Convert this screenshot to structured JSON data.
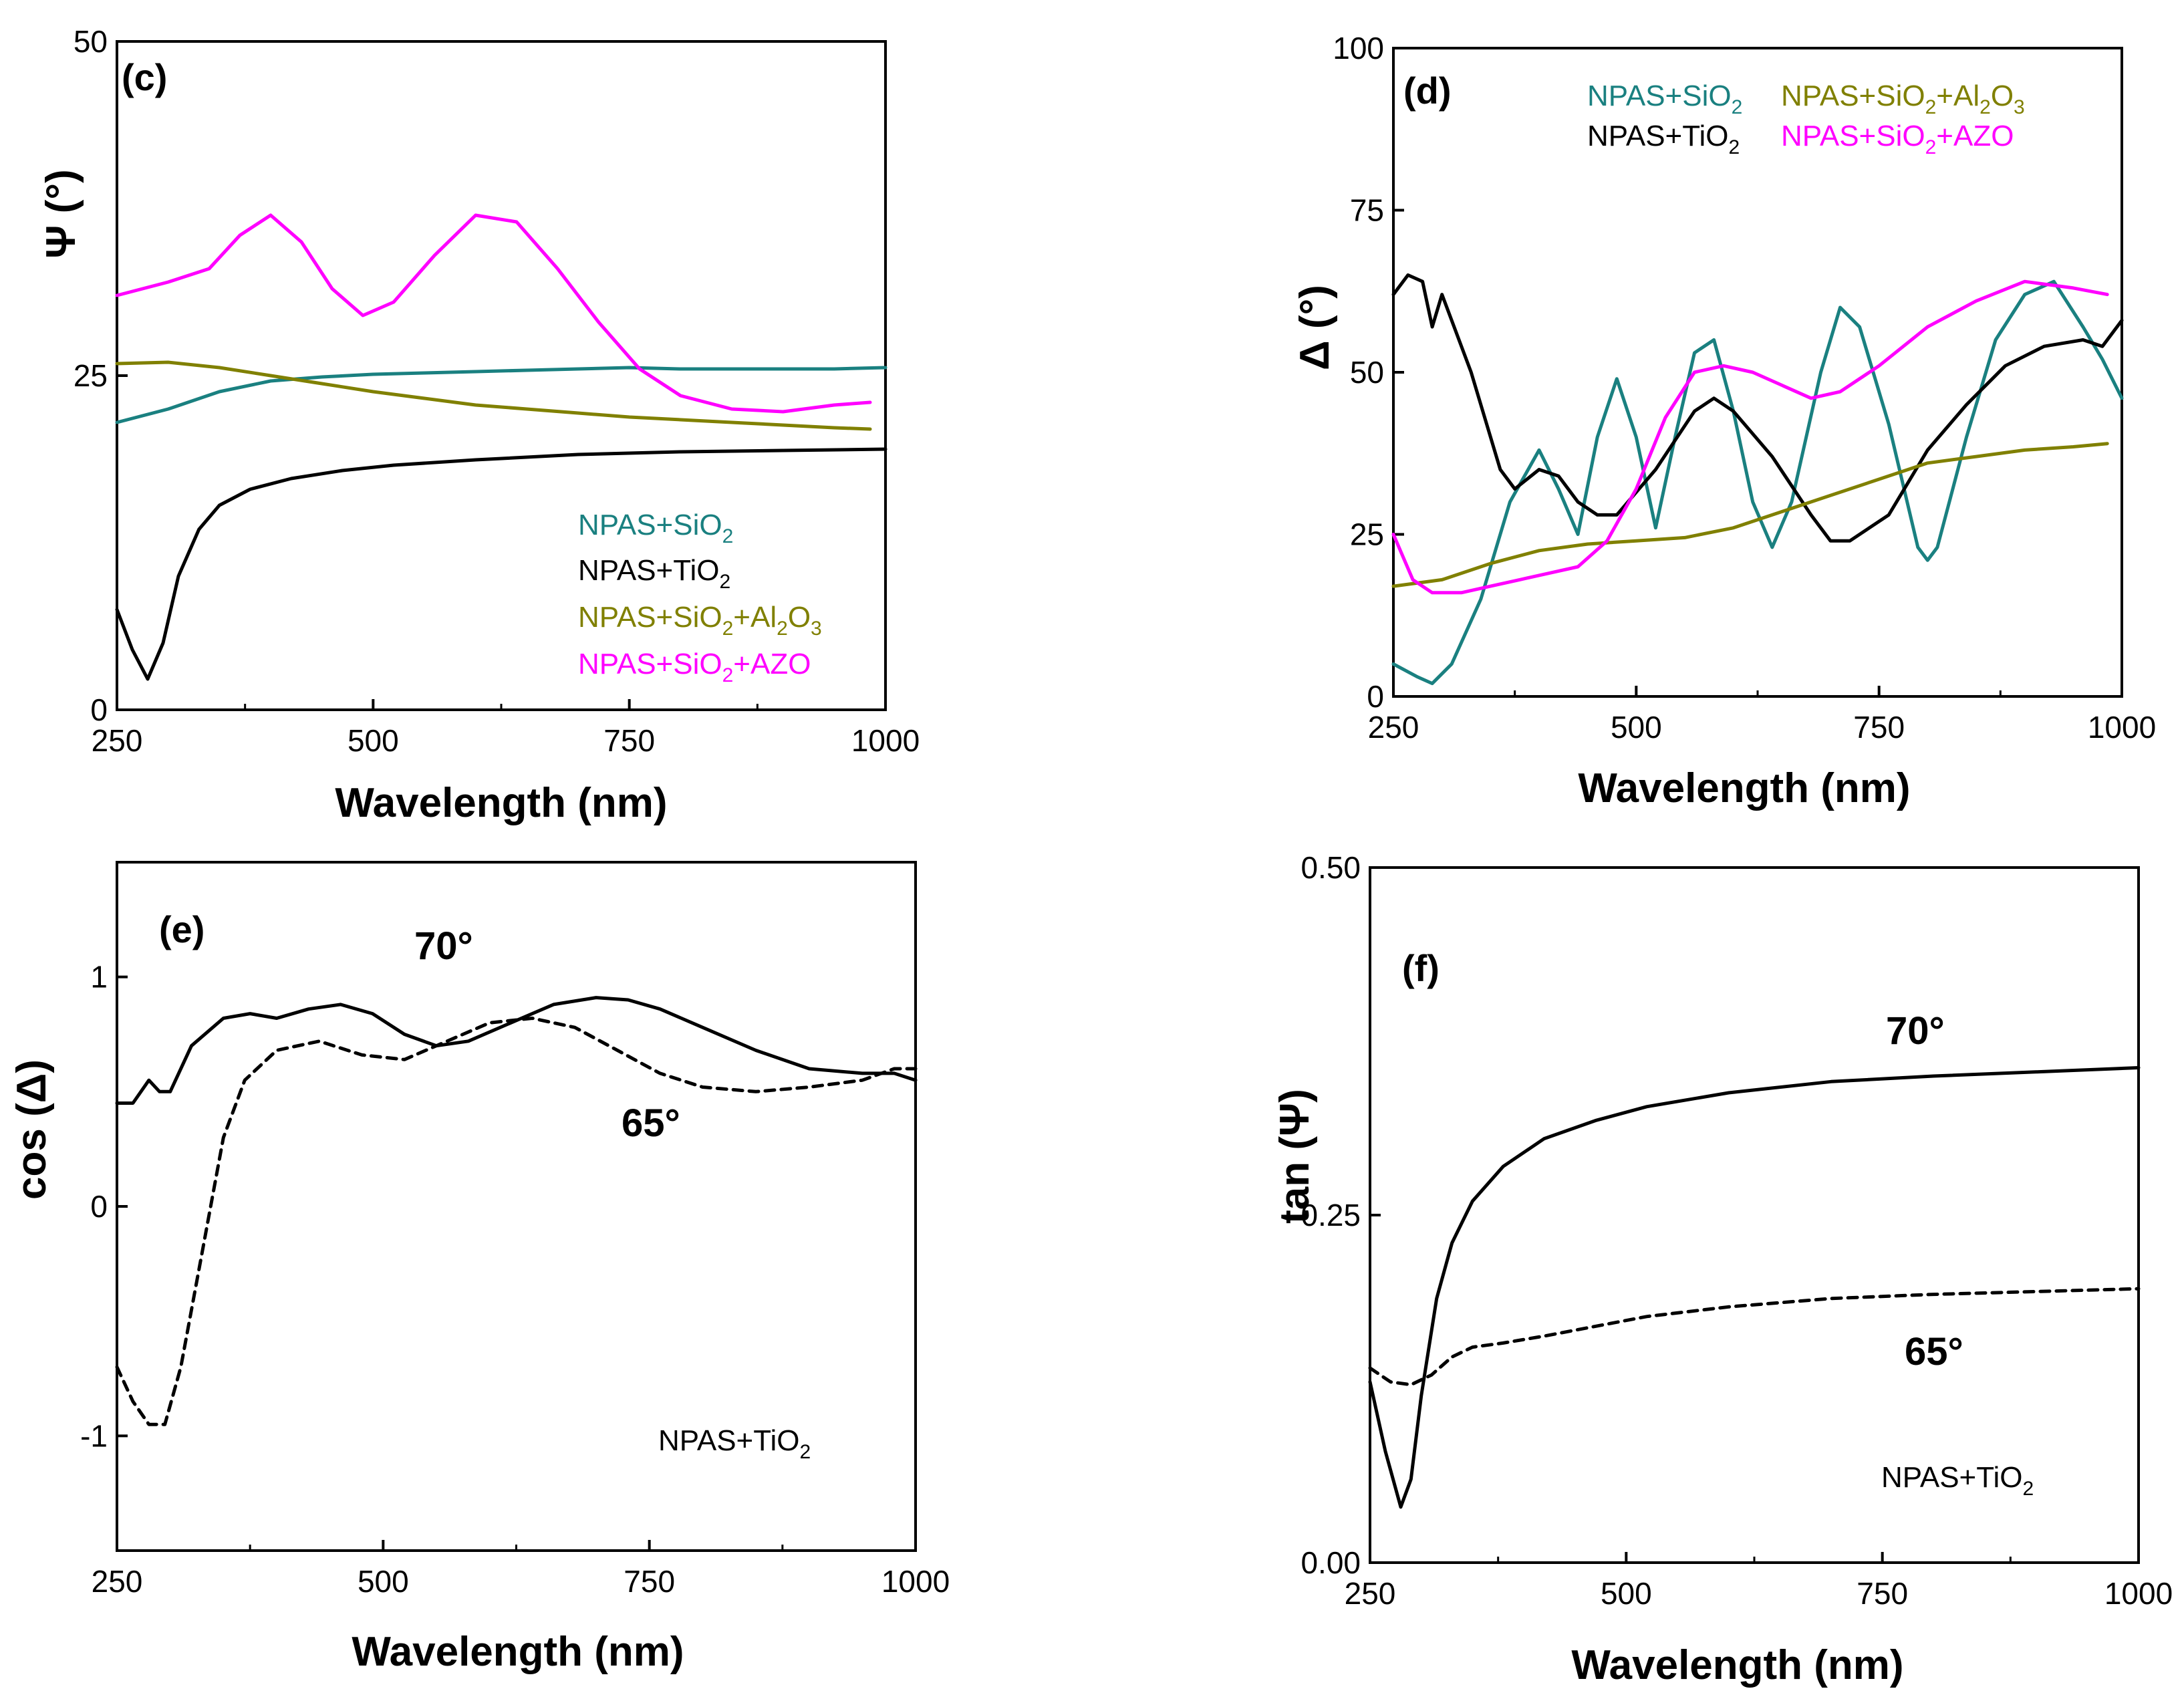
{
  "chart_data": [
    {
      "id": "c",
      "type": "line",
      "panel_label": "(c)",
      "xlabel": "Wavelength (nm)",
      "ylabel": "Ψ (°)",
      "xlim": [
        250,
        1000
      ],
      "ylim": [
        0,
        50
      ],
      "xticks": [
        250,
        500,
        750,
        1000
      ],
      "yticks": [
        0,
        25,
        50
      ],
      "legend_position": "bottom-right",
      "series": [
        {
          "name": "NPAS+SiO2",
          "label": "NPAS+SiO",
          "sub": "2",
          "label_after": "",
          "color": "#1a8080",
          "dash": "",
          "x": [
            250,
            300,
            350,
            400,
            450,
            500,
            550,
            600,
            650,
            700,
            750,
            800,
            850,
            900,
            950,
            1000
          ],
          "y": [
            21.5,
            22.5,
            23.8,
            24.6,
            24.9,
            25.1,
            25.2,
            25.3,
            25.4,
            25.5,
            25.6,
            25.5,
            25.5,
            25.5,
            25.5,
            25.6
          ]
        },
        {
          "name": "NPAS+TiO2",
          "label": "NPAS+TiO",
          "sub": "2",
          "label_after": "",
          "color": "#000000",
          "dash": "",
          "x": [
            250,
            265,
            280,
            295,
            310,
            330,
            350,
            380,
            420,
            470,
            520,
            600,
            700,
            800,
            900,
            1000
          ],
          "y": [
            7.5,
            4.5,
            2.3,
            5,
            10,
            13.5,
            15.3,
            16.5,
            17.3,
            17.9,
            18.3,
            18.7,
            19.1,
            19.3,
            19.4,
            19.5
          ]
        },
        {
          "name": "NPAS+SiO2+Al2O3",
          "label": "NPAS+SiO",
          "sub": "2",
          "label_after": "+Al",
          "sub2": "2",
          "label_after2": "O",
          "sub3": "3",
          "color": "#808000",
          "dash": "",
          "x": [
            250,
            300,
            350,
            400,
            450,
            500,
            550,
            600,
            650,
            700,
            750,
            800,
            850,
            900,
            950,
            985
          ],
          "y": [
            25.9,
            26,
            25.6,
            25,
            24.4,
            23.8,
            23.3,
            22.8,
            22.5,
            22.2,
            21.9,
            21.7,
            21.5,
            21.3,
            21.1,
            21.0
          ]
        },
        {
          "name": "NPAS+SiO2+AZO",
          "label": "NPAS+SiO",
          "sub": "2",
          "label_after": "+AZO",
          "color": "#ff00ff",
          "dash": "",
          "x": [
            250,
            300,
            340,
            370,
            400,
            430,
            460,
            490,
            520,
            560,
            600,
            640,
            680,
            720,
            760,
            800,
            850,
            900,
            950,
            985
          ],
          "y": [
            31,
            32,
            33,
            35.5,
            37,
            35,
            31.5,
            29.5,
            30.5,
            34,
            37,
            36.5,
            33,
            29,
            25.5,
            23.5,
            22.5,
            22.3,
            22.8,
            23.0
          ]
        }
      ]
    },
    {
      "id": "d",
      "type": "line",
      "panel_label": "(d)",
      "xlabel": "Wavelength (nm)",
      "ylabel": "Δ (°)",
      "xlim": [
        250,
        1000
      ],
      "ylim": [
        0,
        100
      ],
      "xticks": [
        250,
        500,
        750,
        1000
      ],
      "yticks": [
        0,
        25,
        50,
        75,
        100
      ],
      "legend_position": "top",
      "series": [
        {
          "name": "NPAS+SiO2",
          "label": "NPAS+SiO",
          "sub": "2",
          "label_after": "",
          "color": "#1a8080",
          "dash": "",
          "x": [
            250,
            275,
            290,
            310,
            340,
            370,
            400,
            420,
            440,
            460,
            480,
            500,
            520,
            540,
            560,
            580,
            600,
            620,
            640,
            660,
            690,
            710,
            730,
            760,
            790,
            800,
            810,
            840,
            870,
            900,
            930,
            960,
            980,
            1000
          ],
          "y": [
            5,
            3,
            2,
            5,
            15,
            30,
            38,
            32,
            25,
            40,
            49,
            40,
            26,
            40,
            53,
            55,
            44,
            30,
            23,
            30,
            50,
            60,
            57,
            42,
            23,
            21,
            23,
            40,
            55,
            62,
            64,
            57,
            52,
            46
          ]
        },
        {
          "name": "NPAS+TiO2",
          "label": "NPAS+TiO",
          "sub": "2",
          "label_after": "",
          "color": "#000000",
          "dash": "",
          "x": [
            250,
            265,
            280,
            290,
            300,
            330,
            360,
            375,
            400,
            420,
            440,
            460,
            480,
            520,
            560,
            580,
            600,
            640,
            680,
            700,
            720,
            760,
            800,
            840,
            880,
            920,
            960,
            980,
            1000
          ],
          "y": [
            62,
            65,
            64,
            57,
            62,
            50,
            35,
            32,
            35,
            34,
            30,
            28,
            28,
            35,
            44,
            46,
            44,
            37,
            28,
            24,
            24,
            28,
            38,
            45,
            51,
            54,
            55,
            54,
            58
          ]
        },
        {
          "name": "NPAS+SiO2+Al2O3",
          "label": "NPAS+SiO",
          "sub": "2",
          "label_after": "+Al",
          "sub2": "2",
          "label_after2": "O",
          "sub3": "3",
          "color": "#808000",
          "dash": "",
          "x": [
            250,
            300,
            350,
            400,
            450,
            500,
            550,
            600,
            650,
            700,
            750,
            800,
            850,
            900,
            950,
            985
          ],
          "y": [
            17,
            18,
            20.5,
            22.5,
            23.5,
            24,
            24.5,
            26,
            28.5,
            31,
            33.5,
            36,
            37,
            38,
            38.5,
            39
          ]
        },
        {
          "name": "NPAS+SiO2+AZO",
          "label": "NPAS+SiO",
          "sub": "2",
          "label_after": "+AZO",
          "color": "#ff00ff",
          "dash": "",
          "x": [
            250,
            270,
            290,
            320,
            350,
            380,
            410,
            440,
            470,
            500,
            530,
            560,
            590,
            620,
            650,
            680,
            710,
            750,
            800,
            850,
            900,
            950,
            985
          ],
          "y": [
            25,
            18,
            16,
            16,
            17,
            18,
            19,
            20,
            24,
            32,
            43,
            50,
            51,
            50,
            48,
            46,
            47,
            51,
            57,
            61,
            64,
            63,
            62
          ]
        }
      ]
    },
    {
      "id": "e",
      "type": "line",
      "panel_label": "(e)",
      "xlabel": "Wavelength (nm)",
      "ylabel": "cos (Δ)",
      "xlim": [
        250,
        1000
      ],
      "ylim": [
        -1.5,
        1.5
      ],
      "xticks": [
        250,
        500,
        750,
        1000
      ],
      "yticks": [
        -1,
        0,
        1
      ],
      "ytick_labels": [
        "-1",
        "0",
        "1"
      ],
      "legend_position": "bottom-right",
      "sample_label": "NPAS+TiO",
      "sample_sub": "2",
      "angle_labels": [
        "70°",
        "65°"
      ],
      "series": [
        {
          "name": "70°",
          "color": "#000000",
          "dash": "",
          "x": [
            250,
            265,
            280,
            290,
            300,
            320,
            350,
            375,
            400,
            430,
            460,
            490,
            520,
            550,
            580,
            620,
            660,
            700,
            730,
            760,
            800,
            850,
            900,
            950,
            980,
            1000
          ],
          "y": [
            0.45,
            0.45,
            0.55,
            0.5,
            0.5,
            0.7,
            0.82,
            0.84,
            0.82,
            0.86,
            0.88,
            0.84,
            0.75,
            0.7,
            0.72,
            0.8,
            0.88,
            0.91,
            0.9,
            0.86,
            0.78,
            0.68,
            0.6,
            0.58,
            0.58,
            0.55
          ]
        },
        {
          "name": "65°",
          "color": "#000000",
          "dash": "14,10",
          "x": [
            250,
            265,
            280,
            295,
            310,
            330,
            350,
            370,
            400,
            440,
            480,
            520,
            560,
            600,
            640,
            680,
            720,
            760,
            800,
            850,
            900,
            950,
            980,
            1000
          ],
          "y": [
            -0.7,
            -0.85,
            -0.95,
            -0.95,
            -0.7,
            -0.2,
            0.3,
            0.55,
            0.68,
            0.72,
            0.66,
            0.64,
            0.72,
            0.8,
            0.82,
            0.78,
            0.68,
            0.58,
            0.52,
            0.5,
            0.52,
            0.55,
            0.6,
            0.6
          ]
        }
      ]
    },
    {
      "id": "f",
      "type": "line",
      "panel_label": "(f)",
      "xlabel": "Wavelength (nm)",
      "ylabel": "tan (Ψ)",
      "xlim": [
        250,
        1000
      ],
      "ylim": [
        0,
        0.5
      ],
      "xticks": [
        250,
        500,
        750,
        1000
      ],
      "yticks": [
        0,
        0.25,
        0.5
      ],
      "ytick_labels": [
        "0.00",
        "0.25",
        "0.50"
      ],
      "legend_position": "bottom-right",
      "sample_label": "NPAS+TiO",
      "sample_sub": "2",
      "angle_labels": [
        "70°",
        "65°"
      ],
      "series": [
        {
          "name": "70°",
          "color": "#000000",
          "dash": "",
          "x": [
            250,
            265,
            280,
            290,
            300,
            315,
            330,
            350,
            380,
            420,
            470,
            520,
            600,
            700,
            800,
            900,
            1000
          ],
          "y": [
            0.13,
            0.08,
            0.04,
            0.06,
            0.12,
            0.19,
            0.23,
            0.26,
            0.285,
            0.305,
            0.318,
            0.328,
            0.338,
            0.346,
            0.35,
            0.353,
            0.356
          ]
        },
        {
          "name": "65°",
          "color": "#000000",
          "dash": "14,10",
          "x": [
            250,
            270,
            290,
            310,
            330,
            350,
            380,
            420,
            470,
            520,
            600,
            700,
            800,
            900,
            1000
          ],
          "y": [
            0.14,
            0.13,
            0.128,
            0.135,
            0.148,
            0.155,
            0.158,
            0.163,
            0.17,
            0.177,
            0.184,
            0.19,
            0.193,
            0.195,
            0.197
          ]
        }
      ]
    }
  ]
}
